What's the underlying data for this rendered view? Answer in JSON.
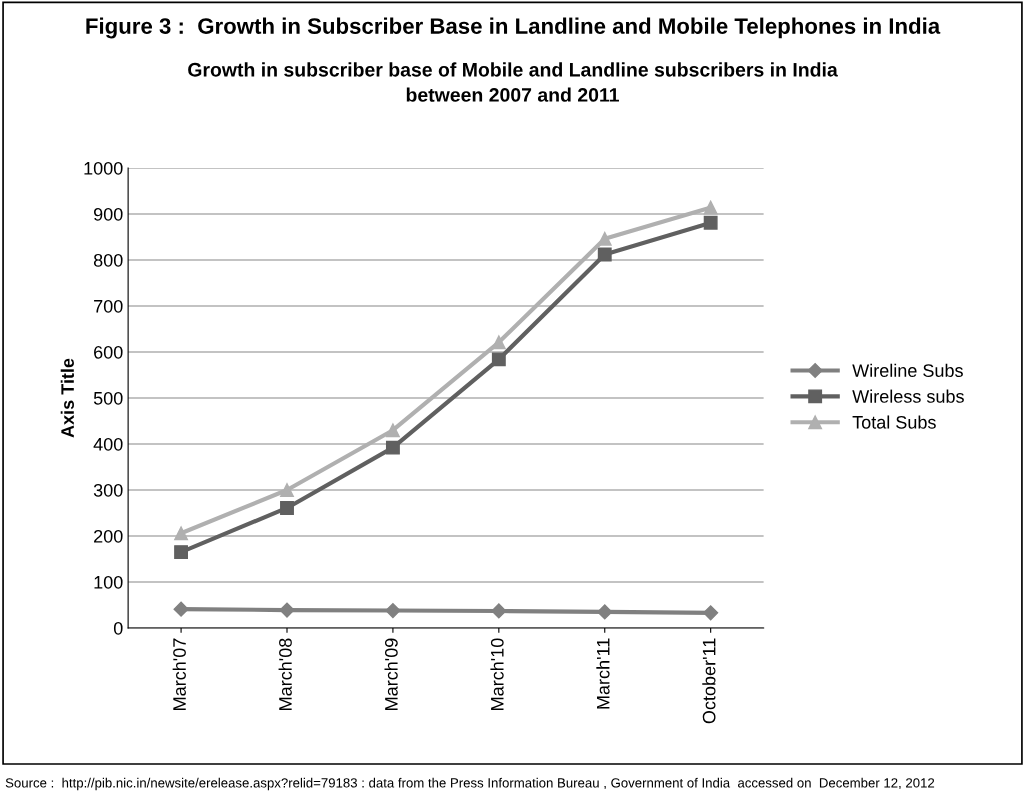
{
  "chart_data": {
    "type": "line",
    "title": "Figure 3 :  Growth in Subscriber Base in Landline and Mobile Telephones in India",
    "subtitle": "Growth in subscriber base of Mobile and Landline subscribers in India\nbetween 2007 and 2011",
    "ylabel": "Axis Title",
    "categories": [
      "March'07",
      "March'08",
      "March'09",
      "March'10",
      "March'11",
      "October'11"
    ],
    "series": [
      {
        "name": "Wireline Subs",
        "color": "#808080",
        "marker": "diamond",
        "values": [
          41,
          39,
          38,
          37,
          35,
          33
        ]
      },
      {
        "name": "Wireless subs",
        "color": "#606060",
        "marker": "square",
        "values": [
          165,
          261,
          392,
          584,
          812,
          881
        ]
      },
      {
        "name": "Total Subs",
        "color": "#b0b0b0",
        "marker": "triangle",
        "values": [
          206,
          300,
          430,
          621,
          846,
          914
        ]
      }
    ],
    "ylim": [
      0,
      1000
    ],
    "yticks": [
      0,
      100,
      200,
      300,
      400,
      500,
      600,
      700,
      800,
      900,
      1000
    ],
    "grid": "y",
    "legend": "right",
    "annotations": [
      "Source :  http://pib.nic.in/newsite/erelease.aspx?relid=79183 : data from the Press Information Bureau , Government of India  accessed on  December 12, 2012"
    ]
  }
}
